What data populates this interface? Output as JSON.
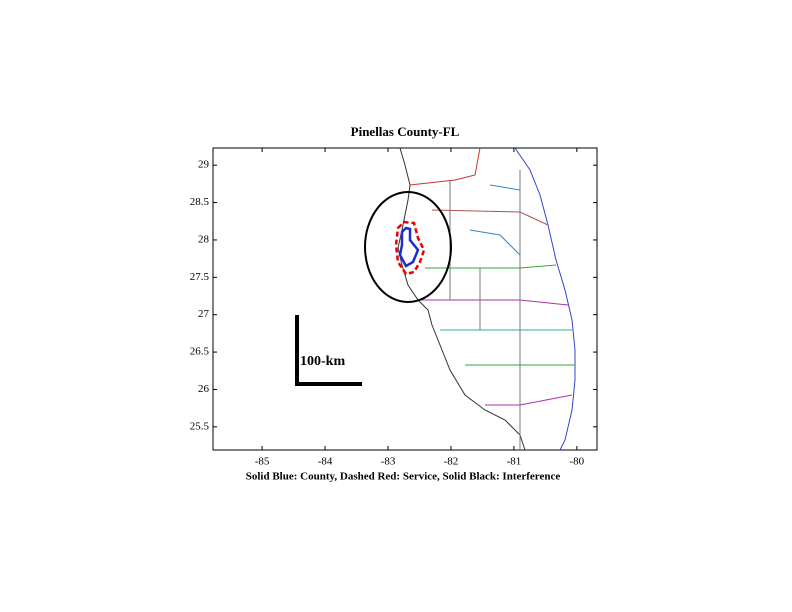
{
  "chart_data": {
    "type": "map",
    "title": "Pinellas County-FL",
    "xlabel": "Solid Blue: County, Dashed Red: Service, Solid Black: Interference",
    "scale_label": "100-km",
    "xlim": [
      -85.78,
      -79.68
    ],
    "xticks": [
      -85,
      -84,
      -83,
      -82,
      -81,
      -80
    ],
    "ylim": [
      25.19,
      29.23
    ],
    "yticks": [
      25.5,
      26,
      26.5,
      27,
      27.5,
      28,
      28.5,
      29
    ]
  }
}
